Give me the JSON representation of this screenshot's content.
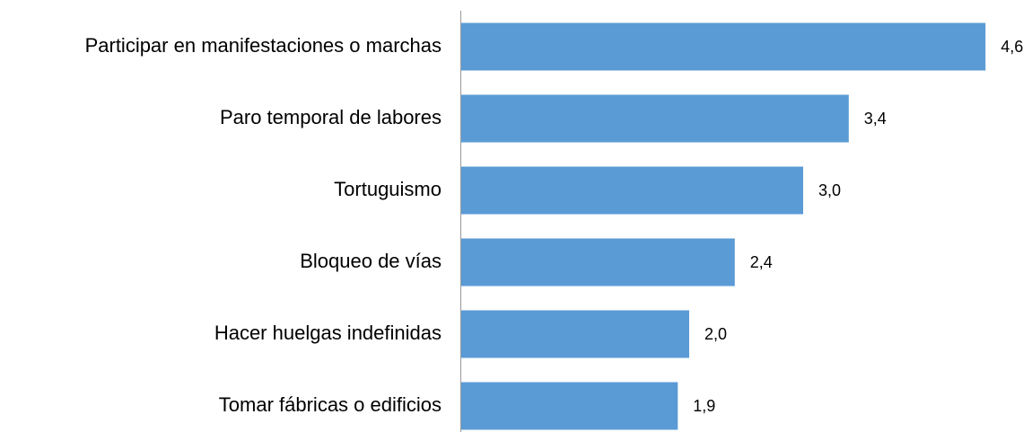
{
  "chart_data": {
    "type": "bar",
    "orientation": "horizontal",
    "categories": [
      "Participar en manifestaciones o marchas",
      "Paro temporal de labores",
      "Tortuguismo",
      "Bloqueo de vías",
      "Hacer huelgas indefinidas",
      "Tomar fábricas o edificios"
    ],
    "values": [
      4.6,
      3.4,
      3.0,
      2.4,
      2.0,
      1.9
    ],
    "value_labels": [
      "4,6",
      "3,4",
      "3,0",
      "2,4",
      "2,0",
      "1,9"
    ],
    "color": "#5b9bd5",
    "xlim": [
      0,
      5
    ]
  }
}
